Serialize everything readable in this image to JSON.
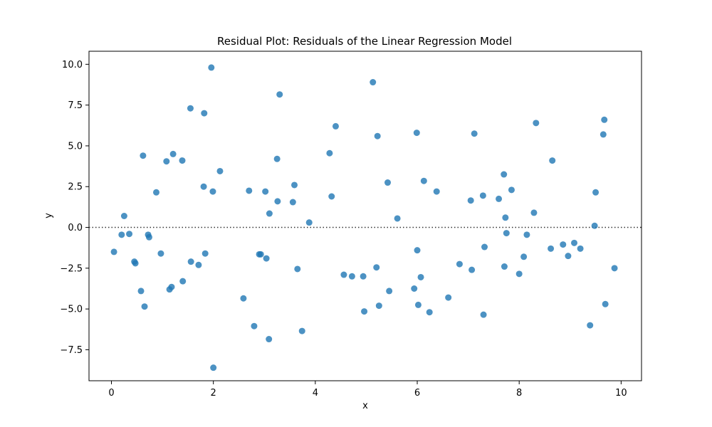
{
  "chart_data": {
    "type": "scatter",
    "title": "Residual Plot: Residuals of the Linear Regression Model",
    "xlabel": "x",
    "ylabel": "y",
    "xlim": [
      -0.44,
      10.4
    ],
    "ylim": [
      -9.4,
      10.8
    ],
    "xticks": [
      0,
      2,
      4,
      6,
      8,
      10
    ],
    "xtick_labels": [
      "0",
      "2",
      "4",
      "6",
      "8",
      "10"
    ],
    "yticks": [
      -7.5,
      -5.0,
      -2.5,
      0.0,
      2.5,
      5.0,
      7.5,
      10.0
    ],
    "ytick_labels": [
      "−7.5",
      "−5.0",
      "−2.5",
      "0.0",
      "2.5",
      "5.0",
      "7.5",
      "10.0"
    ],
    "grid": false,
    "reference_line": {
      "y": 0,
      "style": "dotted",
      "color": "#333333"
    },
    "marker_color": "#1f77b4",
    "x": [
      0.05,
      0.2,
      0.25,
      0.35,
      0.45,
      0.47,
      0.58,
      0.62,
      0.65,
      0.72,
      0.74,
      0.88,
      0.97,
      1.08,
      1.14,
      1.18,
      1.21,
      1.39,
      1.4,
      1.55,
      1.56,
      1.71,
      1.81,
      1.82,
      1.84,
      1.96,
      1.99,
      2.0,
      2.13,
      2.59,
      2.7,
      2.8,
      2.9,
      2.93,
      3.02,
      3.04,
      3.09,
      3.1,
      3.25,
      3.26,
      3.3,
      3.56,
      3.59,
      3.65,
      3.74,
      3.88,
      4.28,
      4.32,
      4.4,
      4.56,
      4.72,
      4.94,
      4.96,
      5.13,
      5.2,
      5.22,
      5.25,
      5.42,
      5.45,
      5.61,
      5.94,
      5.99,
      6.0,
      6.02,
      6.07,
      6.13,
      6.24,
      6.38,
      6.61,
      6.83,
      7.05,
      7.07,
      7.12,
      7.29,
      7.3,
      7.32,
      7.6,
      7.7,
      7.71,
      7.73,
      7.75,
      7.85,
      8.0,
      8.09,
      8.15,
      8.29,
      8.33,
      8.62,
      8.65,
      8.86,
      8.96,
      9.08,
      9.2,
      9.39,
      9.48,
      9.5,
      9.65,
      9.67,
      9.69,
      9.87
    ],
    "y": [
      -1.5,
      -0.45,
      0.7,
      -0.4,
      -2.1,
      -2.2,
      -3.9,
      4.4,
      -4.85,
      -0.45,
      -0.6,
      2.15,
      -1.6,
      4.05,
      -3.8,
      -3.65,
      4.5,
      4.1,
      -3.3,
      7.3,
      -2.1,
      -2.3,
      2.5,
      7.0,
      -1.6,
      9.8,
      2.2,
      -8.6,
      3.45,
      -4.35,
      2.25,
      -6.05,
      -1.65,
      -1.65,
      2.2,
      -1.9,
      -6.85,
      0.85,
      4.2,
      1.6,
      8.15,
      1.55,
      2.6,
      -2.55,
      -6.35,
      0.3,
      4.55,
      1.9,
      6.2,
      -2.9,
      -3.0,
      -3.0,
      -5.15,
      8.9,
      -2.45,
      5.6,
      -4.8,
      2.75,
      -3.9,
      0.55,
      -3.75,
      5.8,
      -1.4,
      -4.75,
      -3.05,
      2.85,
      -5.2,
      2.2,
      -4.3,
      -2.25,
      1.65,
      -2.6,
      5.75,
      1.95,
      -5.35,
      -1.2,
      1.75,
      3.25,
      -2.4,
      0.6,
      -0.35,
      2.3,
      -2.85,
      -1.8,
      -0.45,
      0.9,
      6.4,
      -1.3,
      4.1,
      -1.05,
      -1.75,
      -0.95,
      -1.3,
      -6.0,
      0.1,
      2.15,
      5.7,
      6.6,
      -4.7,
      -2.5
    ]
  }
}
